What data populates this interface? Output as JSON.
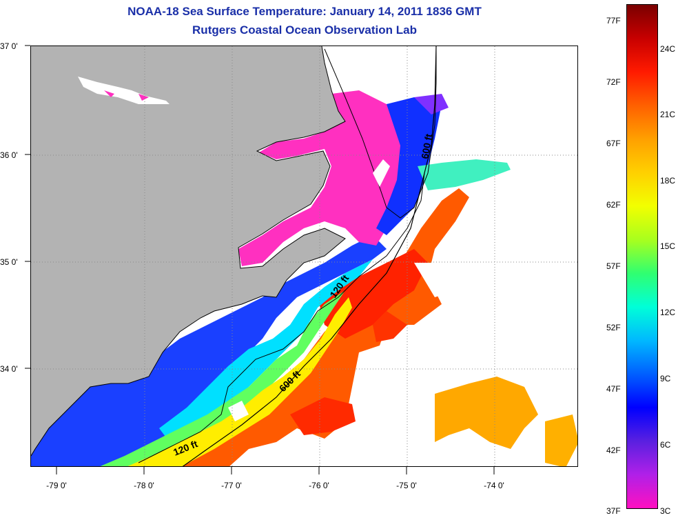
{
  "title": {
    "line1": "NOAA-18 Sea Surface Temperature:  January 14, 2011 1836 GMT",
    "line2": "Rutgers Coastal Ocean Observation Lab"
  },
  "latitude_labels": [
    "37 0'",
    "36 0'",
    "35 0'",
    "34 0'"
  ],
  "longitude_labels": [
    "-79 0'",
    "-78 0'",
    "-77 0'",
    "-76 0'",
    "-75 0'",
    "-74 0'"
  ],
  "isobaths": [
    "600 ft",
    "120 ft",
    "600 ft",
    "120 ft"
  ],
  "colorbar": {
    "fahrenheit": [
      "77F",
      "72F",
      "67F",
      "62F",
      "57F",
      "52F",
      "47F",
      "42F",
      "37F"
    ],
    "celsius": [
      "24C",
      "21C",
      "18C",
      "15C",
      "12C",
      "9C",
      "6C",
      "3C"
    ],
    "colors_top_to_bottom": [
      "#7a0000",
      "#c80000",
      "#ff1a00",
      "#ff6000",
      "#ffa000",
      "#ffd000",
      "#f2ff00",
      "#a8ff1e",
      "#30ff70",
      "#00ffd8",
      "#00b8ff",
      "#0060ff",
      "#0000ff",
      "#5a20e0",
      "#b020e8",
      "#ff10c0"
    ]
  },
  "colors": {
    "land": "#b3b3b3",
    "title": "#1a2fa8",
    "cloud": "#ffffff"
  }
}
